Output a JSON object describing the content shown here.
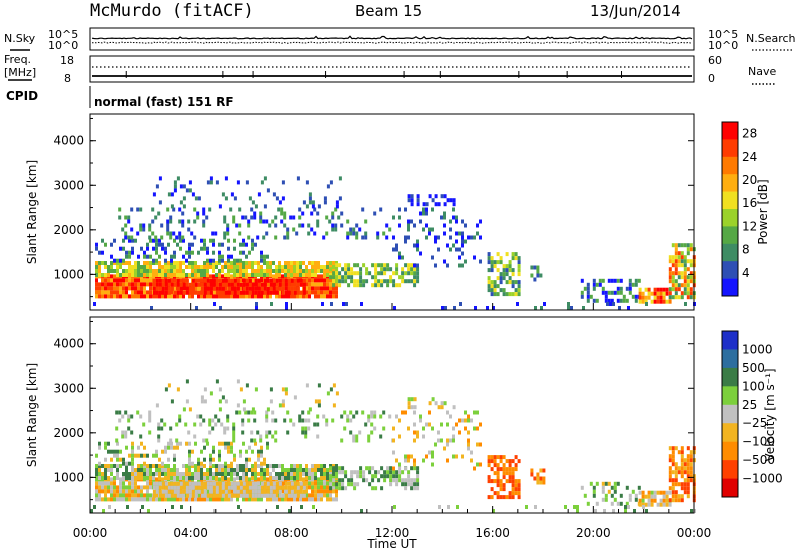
{
  "header": {
    "station": "McMurdo (fitACF)",
    "beam": "Beam 15",
    "date": "13/Jun/2014"
  },
  "top_panels": {
    "nsky_label": "N.Sky",
    "nsearch_label": "N.Search",
    "noise_ticks": [
      "10^5",
      "10^0"
    ],
    "freq_label_1": "Freq.",
    "freq_label_2": "[MHz]",
    "freq_ticks": [
      "18",
      "8"
    ],
    "nave_label": "Nave",
    "nave_ticks": [
      "60",
      "0"
    ],
    "cpid_label": "CPID",
    "cpid_text": "normal (fast) 151 RF"
  },
  "colors": {
    "power_scale": [
      "#1414ff",
      "#2e4fb4",
      "#3e8c64",
      "#55a845",
      "#9bd22a",
      "#f0e020",
      "#ffae10",
      "#ff7a00",
      "#ff3c00",
      "#ff0000"
    ],
    "velocity_scale": [
      "#1d2fc8",
      "#2d6e9f",
      "#3a7c46",
      "#7cd03c",
      "#c0c0c0",
      "#f2b420",
      "#ff8c00",
      "#ff4000",
      "#e00000"
    ]
  },
  "chart_data": [
    {
      "type": "heatmap",
      "name": "power",
      "ylabel": "Slant Range [km]",
      "ylim": [
        200,
        4600
      ],
      "yticks": [
        "1000",
        "2000",
        "3000",
        "4000"
      ],
      "xlim": [
        0,
        24
      ],
      "colorbar_label": "Power [dB]",
      "colorbar_ticks": [
        "4",
        "8",
        "12",
        "16",
        "20",
        "24",
        "28"
      ],
      "colorbar_range": [
        0,
        30
      ]
    },
    {
      "type": "heatmap",
      "name": "velocity",
      "ylabel": "Slant Range [km]",
      "ylim": [
        200,
        4600
      ],
      "yticks": [
        "1000",
        "2000",
        "3000",
        "4000"
      ],
      "xlim": [
        0,
        24
      ],
      "colorbar_label": "Velocity [m s⁻¹]",
      "colorbar_ticks": [
        "1000",
        "500",
        "100",
        "25",
        "−25",
        "−100",
        "−500",
        "−1000"
      ]
    }
  ],
  "x_axis": {
    "ticks": [
      "00:00",
      "04:00",
      "08:00",
      "12:00",
      "16:00",
      "20:00",
      "00:00"
    ],
    "label": "Time UT"
  }
}
